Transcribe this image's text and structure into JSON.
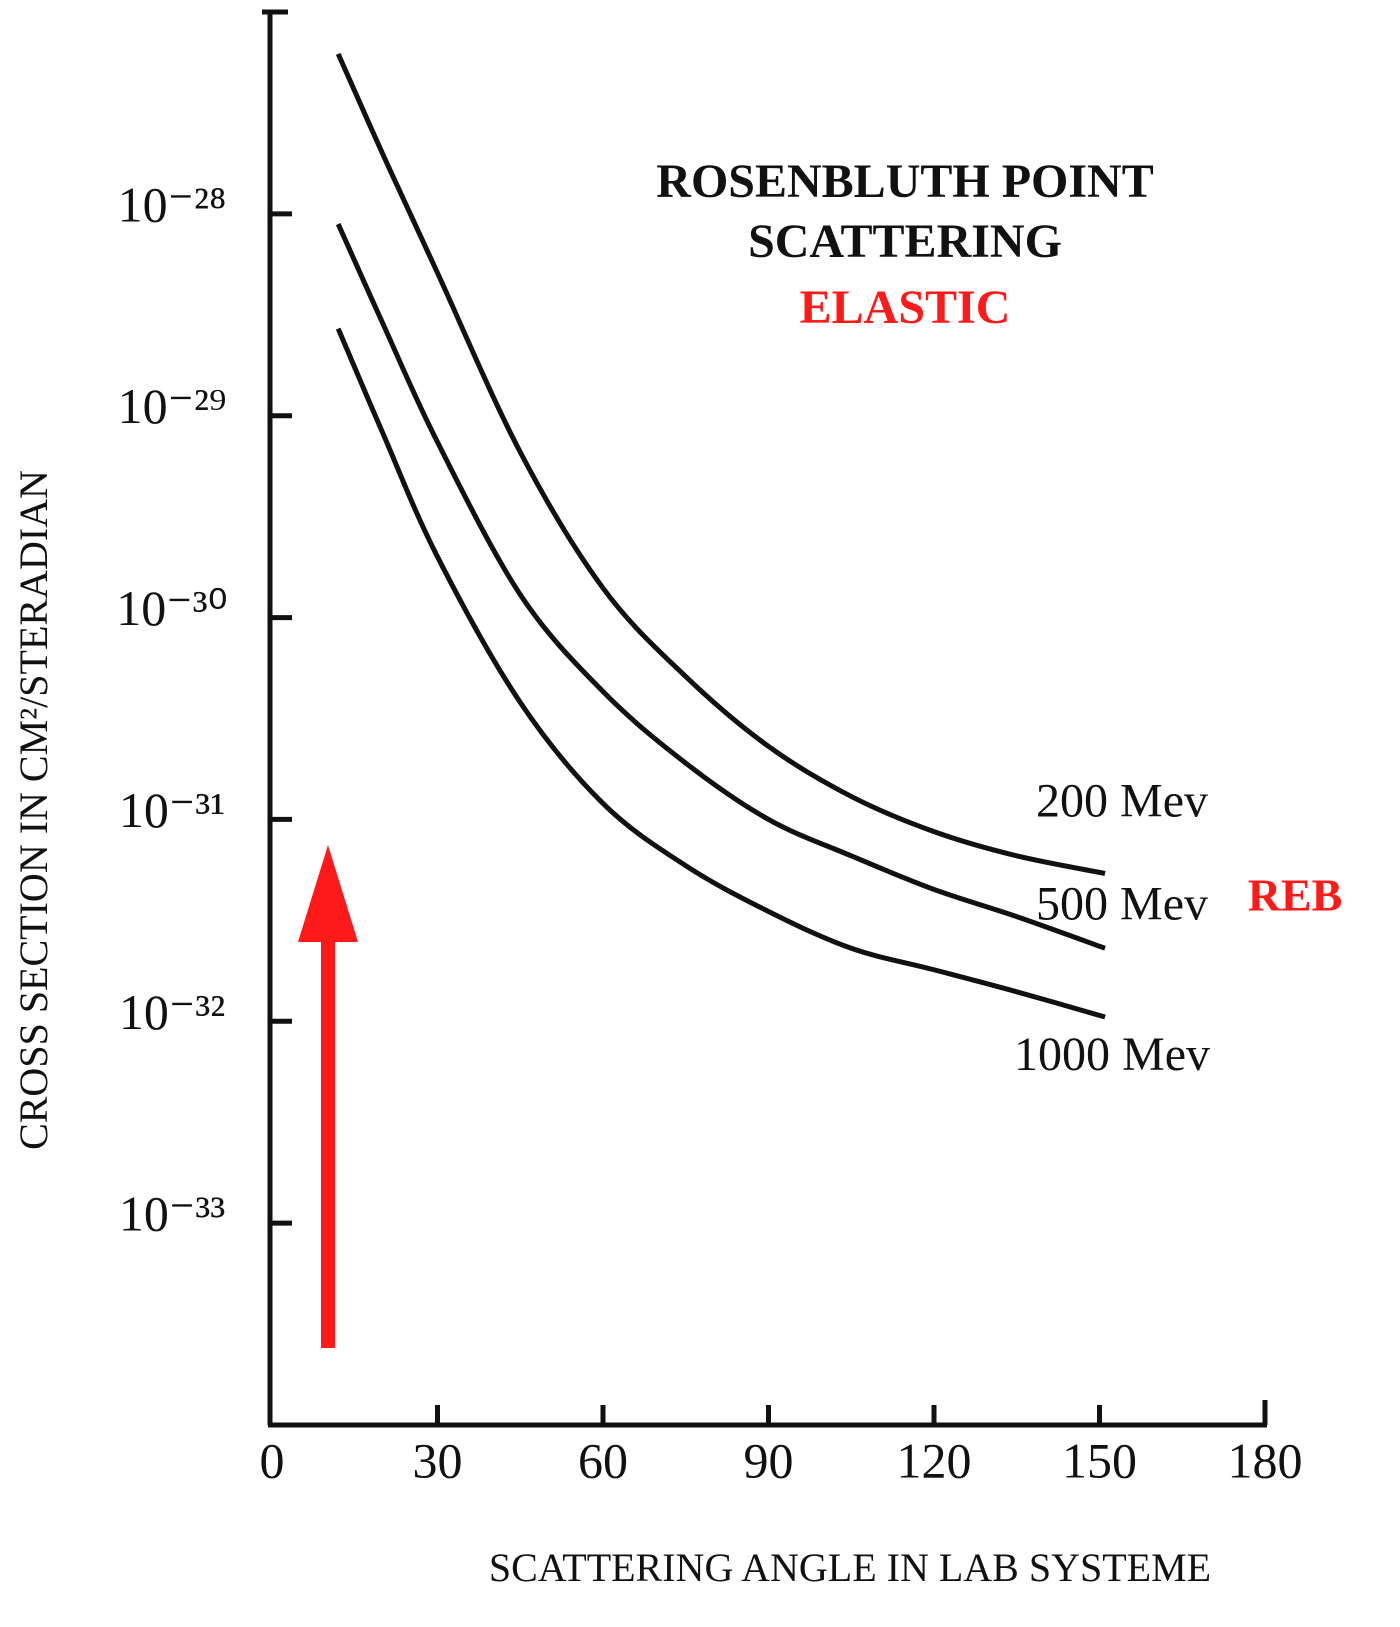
{
  "chart_data": {
    "type": "line",
    "title": "ROSENBLUTH POINT",
    "subtitle": "SCATTERING",
    "annotations": [
      {
        "text": "ELASTIC",
        "color": "#ff1a1a"
      },
      {
        "text": "REB",
        "color": "#ff1a1a"
      }
    ],
    "x_label": "SCATTERING ANGLE IN LAB SYSTEME",
    "y_label": "CROSS SECTION IN CM²/STERADIAN",
    "x": [
      12,
      20,
      30,
      45,
      60,
      75,
      90,
      105,
      120,
      135,
      151
    ],
    "series": [
      {
        "name": "200 Mev",
        "color": "#111111",
        "values": [
          6.2e-28,
          2e-28,
          5.1e-29,
          6.6e-30,
          1.4e-30,
          5.1e-31,
          2.3e-31,
          1.3e-31,
          8.7e-32,
          6.6e-32,
          5.4e-32
        ]
      },
      {
        "name": "500 Mev",
        "color": "#111111",
        "values": [
          8.9e-29,
          2.9e-29,
          7.4e-30,
          1.3e-30,
          4.3e-31,
          1.9e-31,
          1e-31,
          6.6e-32,
          4.5e-32,
          3.3e-32,
          2.3e-32
        ]
      },
      {
        "name": "1000 Mev",
        "color": "#111111",
        "values": [
          2.7e-29,
          8.3e-30,
          2e-30,
          3.8e-31,
          1.2e-31,
          5.9e-32,
          3.5e-32,
          2.3e-32,
          1.8e-32,
          1.4e-32,
          1.05e-32
        ]
      }
    ],
    "xlim": [
      0,
      180
    ],
    "xticks": [
      0,
      30,
      60,
      90,
      120,
      150,
      180
    ],
    "ylim": [
      1e-34,
      1e-27
    ],
    "log_y": true,
    "yticks": [
      {
        "value": 1e-28,
        "label": "10⁻²⁸"
      },
      {
        "value": 1e-29,
        "label": "10⁻²⁹"
      },
      {
        "value": 1e-30,
        "label": "10⁻³⁰"
      },
      {
        "value": 1e-31,
        "label": "10⁻³¹"
      },
      {
        "value": 1e-32,
        "label": "10⁻³²"
      },
      {
        "value": 1e-33,
        "label": "10⁻³³"
      }
    ],
    "grid": false
  }
}
